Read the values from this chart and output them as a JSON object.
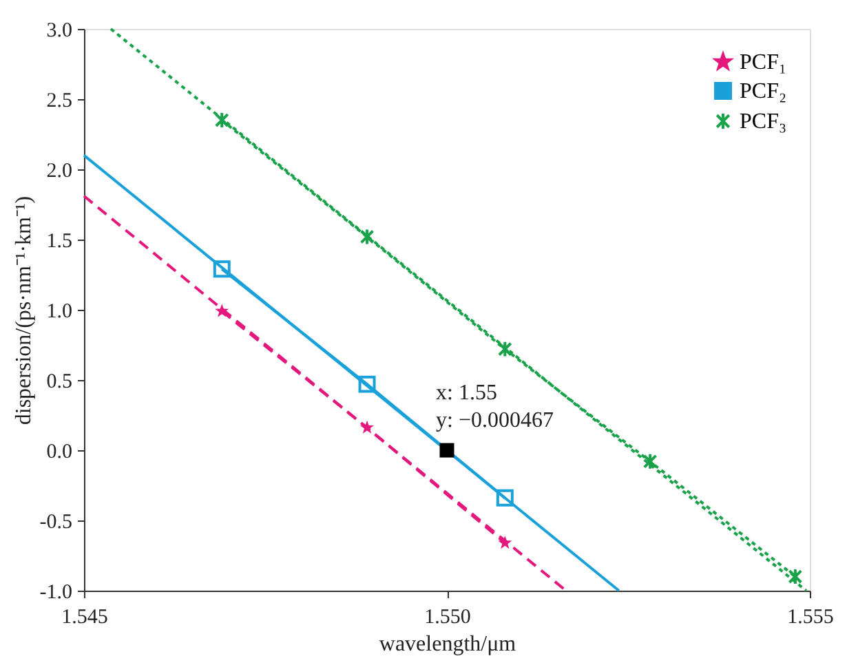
{
  "chart_data": {
    "type": "line",
    "xlabel": "wavelength/μm",
    "ylabel": "dispersion/(ps·nm⁻¹·km⁻¹)",
    "xlim": [
      1.545,
      1.555
    ],
    "ylim": [
      -1.0,
      3.0
    ],
    "xticks": [
      1.545,
      {
        "value": 1.55,
        "label": "1.550"
      },
      1.555
    ],
    "yticks": [
      {
        "value": -1,
        "label": "-1.0"
      },
      -0.5,
      {
        "value": 0,
        "label": "0.0"
      },
      0.5,
      {
        "value": 1,
        "label": "1.0"
      },
      1.5,
      {
        "value": 2,
        "label": "2.0"
      },
      2.5,
      {
        "value": 3,
        "label": "3.0"
      }
    ],
    "grid": false,
    "legend": "top right",
    "series": [
      {
        "name": "PCF₁",
        "color": "#e4177d",
        "marker": "star",
        "line_style": "dashed",
        "x": [
          1.5469,
          1.5489,
          1.5508
        ],
        "values": [
          0.99,
          0.16,
          -0.66
        ]
      },
      {
        "name": "PCF₂",
        "color": "#1ba1d9",
        "marker": "square",
        "line_style": "solid",
        "x": [
          1.5469,
          1.5489,
          1.5508
        ],
        "values": [
          1.29,
          0.47,
          -0.34
        ]
      },
      {
        "name": "PCF₃",
        "color": "#1aa24a",
        "marker": "cross",
        "line_style": "dotted",
        "x": [
          1.5469,
          1.5489,
          1.5508,
          1.5528,
          1.5548
        ],
        "values": [
          2.35,
          1.52,
          0.72,
          -0.08,
          -0.9
        ]
      },
      {
        "color": "#e4177d",
        "marker": "none",
        "line_style": "dashed",
        "x": [
          1.545,
          1.55164
        ],
        "values": [
          1.81,
          -1.0
        ]
      },
      {
        "color": "#1ba1d9",
        "marker": "none",
        "line_style": "solid",
        "x": [
          1.545,
          1.55237
        ],
        "values": [
          2.1,
          -1.0
        ]
      },
      {
        "color": "#1aa24a",
        "marker": "none",
        "line_style": "dotted",
        "x": [
          1.54537,
          1.55495
        ],
        "values": [
          3.0,
          -1.0
        ]
      },
      {
        "type": "scatter",
        "color": "#000000",
        "marker": "square_filled",
        "x": [
          1.55
        ],
        "values": [
          -0.000467
        ]
      }
    ],
    "annotations": [
      {
        "text": "x: 1.55\ny: −0.000467",
        "x": 1.55,
        "y": -0.000467
      }
    ]
  }
}
